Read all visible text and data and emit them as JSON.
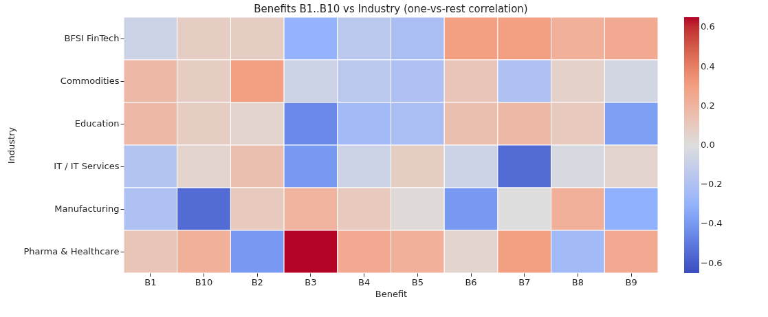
{
  "chart_data": {
    "type": "heatmap",
    "title": "Benefits B1..B10 vs Industry (one-vs-rest correlation)",
    "xlabel": "Benefit",
    "ylabel": "Industry",
    "categories": [
      "B1",
      "B10",
      "B2",
      "B3",
      "B4",
      "B5",
      "B6",
      "B7",
      "B8",
      "B9"
    ],
    "y_categories": [
      "BFSI FinTech",
      "Commodities",
      "Education",
      "IT / IT Services",
      "Manufacturing",
      "Pharma & Healthcare"
    ],
    "cells": [
      [
        -0.08,
        0.08,
        0.08,
        -0.3,
        -0.15,
        -0.22,
        0.3,
        0.3,
        0.22,
        0.25
      ],
      [
        0.18,
        0.08,
        0.3,
        -0.08,
        -0.15,
        -0.2,
        0.12,
        -0.2,
        0.06,
        -0.05
      ],
      [
        0.18,
        0.08,
        0.05,
        -0.45,
        -0.25,
        -0.22,
        0.15,
        0.18,
        0.1,
        -0.38
      ],
      [
        -0.18,
        0.05,
        0.15,
        -0.4,
        -0.08,
        0.08,
        -0.08,
        -0.55,
        -0.03,
        0.05
      ],
      [
        -0.2,
        -0.55,
        0.1,
        0.2,
        0.1,
        0.02,
        -0.4,
        0.0,
        0.22,
        -0.32
      ],
      [
        0.12,
        0.22,
        -0.4,
        0.65,
        0.25,
        0.22,
        0.05,
        0.3,
        -0.25,
        0.25
      ]
    ],
    "clim": [
      -0.65,
      0.65
    ],
    "cticks": [
      {
        "value": -0.6,
        "label": "−0.6"
      },
      {
        "value": -0.4,
        "label": "−0.4"
      },
      {
        "value": -0.2,
        "label": "−0.2"
      },
      {
        "value": 0,
        "label": "0.0"
      },
      {
        "value": 0.2,
        "label": "0.2"
      },
      {
        "value": 0.4,
        "label": "0.4"
      },
      {
        "value": 0.6,
        "label": "0.6"
      }
    ]
  }
}
